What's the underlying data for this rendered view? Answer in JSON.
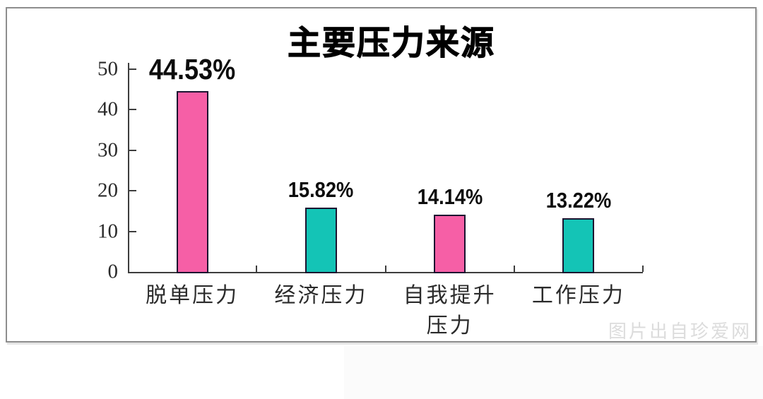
{
  "page": {
    "background": "#ffffff"
  },
  "watermark": {
    "text": "图片出自珍爱网",
    "color": "#dcdcdc"
  },
  "chart_data": {
    "type": "bar",
    "title": "主要压力来源",
    "categories": [
      "脱单压力",
      "经济压力",
      "自我提升\n压力",
      "工作压力"
    ],
    "values": [
      44.53,
      15.82,
      14.14,
      13.22
    ],
    "value_labels": [
      "44.53%",
      "15.82%",
      "14.14%",
      "13.22%"
    ],
    "bar_colors": [
      "#f65fa6",
      "#14c4b6",
      "#f65fa6",
      "#14c4b6"
    ],
    "bar_border_color": "#1c1430",
    "axis_color": "#3d3d3d",
    "yticks": [
      0,
      10,
      20,
      30,
      40,
      50
    ],
    "ylim": [
      0,
      50
    ],
    "xlabel": "",
    "ylabel": "",
    "grid": false,
    "legend": null
  }
}
